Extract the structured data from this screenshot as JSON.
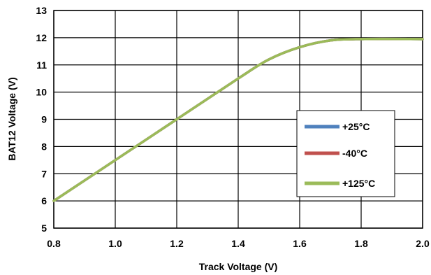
{
  "chart_data": {
    "type": "line",
    "title": "",
    "xlabel": "Track Voltage (V)",
    "ylabel": "BAT12 Voltage (V)",
    "xlim": [
      0.8,
      2.0
    ],
    "ylim": [
      5,
      13
    ],
    "x_ticks": [
      "0.8",
      "1.0",
      "1.2",
      "1.4",
      "1.6",
      "1.8",
      "2.0"
    ],
    "y_ticks": [
      "5",
      "6",
      "7",
      "8",
      "9",
      "10",
      "11",
      "12",
      "13"
    ],
    "grid": true,
    "legend_position": "right",
    "series": [
      {
        "name": "+25°C",
        "color": "#4f81bd",
        "points": [
          [
            0.8,
            6.0
          ],
          [
            1.0,
            7.5
          ],
          [
            1.2,
            9.0
          ],
          [
            1.4,
            10.5
          ],
          [
            1.5,
            11.2
          ],
          [
            1.6,
            11.65
          ],
          [
            1.7,
            11.9
          ],
          [
            1.8,
            11.95
          ],
          [
            2.0,
            11.95
          ]
        ]
      },
      {
        "name": "-40°C",
        "color": "#c0504d",
        "points": [
          [
            0.8,
            6.0
          ],
          [
            1.0,
            7.5
          ],
          [
            1.2,
            9.0
          ],
          [
            1.4,
            10.5
          ],
          [
            1.5,
            11.2
          ],
          [
            1.6,
            11.65
          ],
          [
            1.7,
            11.9
          ],
          [
            1.8,
            11.95
          ],
          [
            2.0,
            11.95
          ]
        ]
      },
      {
        "name": "+125°C",
        "color": "#9bbb59",
        "points": [
          [
            0.8,
            6.0
          ],
          [
            1.0,
            7.5
          ],
          [
            1.2,
            9.0
          ],
          [
            1.4,
            10.5
          ],
          [
            1.5,
            11.2
          ],
          [
            1.6,
            11.65
          ],
          [
            1.7,
            11.9
          ],
          [
            1.8,
            11.95
          ],
          [
            2.0,
            11.95
          ]
        ]
      }
    ]
  }
}
